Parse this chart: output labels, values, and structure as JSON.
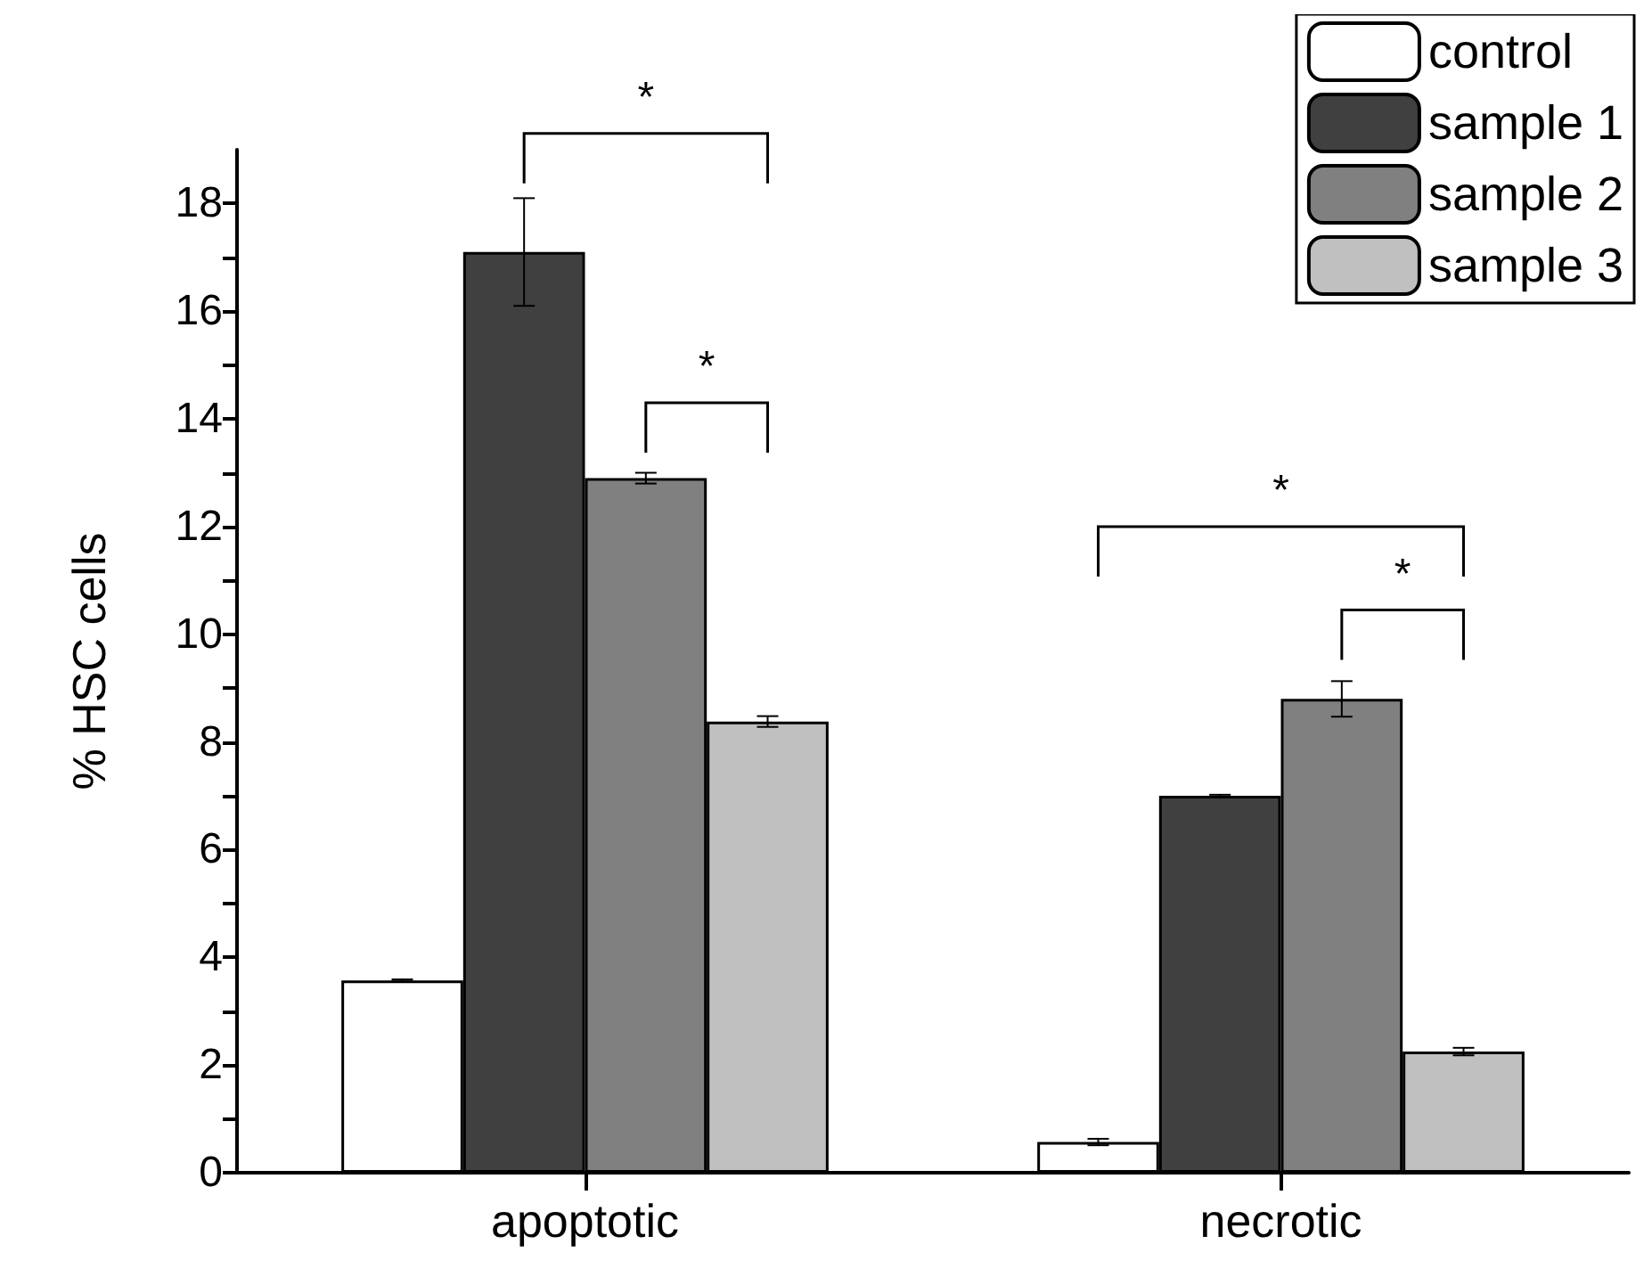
{
  "chart_data": {
    "type": "bar",
    "ylabel": "% HSC cells",
    "categories": [
      "apoptotic",
      "necrotic"
    ],
    "series": [
      {
        "name": "control",
        "color": "#ffffff",
        "values": [
          3.57,
          0.57
        ],
        "errors": [
          0.02,
          0.06
        ]
      },
      {
        "name": "sample 1",
        "color": "#404040",
        "values": [
          17.1,
          7.0
        ],
        "errors": [
          1.0,
          0.02
        ]
      },
      {
        "name": "sample 2",
        "color": "#808080",
        "values": [
          12.9,
          8.8
        ],
        "errors": [
          0.1,
          0.33
        ]
      },
      {
        "name": "sample 3",
        "color": "#c0c0c0",
        "values": [
          8.38,
          2.25
        ],
        "errors": [
          0.1,
          0.07
        ]
      }
    ],
    "ylim": [
      0,
      19
    ],
    "yticks": [
      0,
      {
        "value": 1,
        "label": null
      },
      2,
      {
        "value": 3,
        "label": null
      },
      4,
      {
        "value": 5,
        "label": null
      },
      6,
      {
        "value": 7,
        "label": null
      },
      8,
      {
        "value": 9,
        "label": null
      },
      10,
      {
        "value": 11,
        "label": null
      },
      12,
      {
        "value": 13,
        "label": null
      },
      14,
      {
        "value": 15,
        "label": null
      },
      16,
      {
        "value": 17,
        "label": null
      },
      18
    ],
    "annotations": [
      "*",
      "*",
      "*",
      "*"
    ],
    "legend": "top right",
    "grid": false
  }
}
